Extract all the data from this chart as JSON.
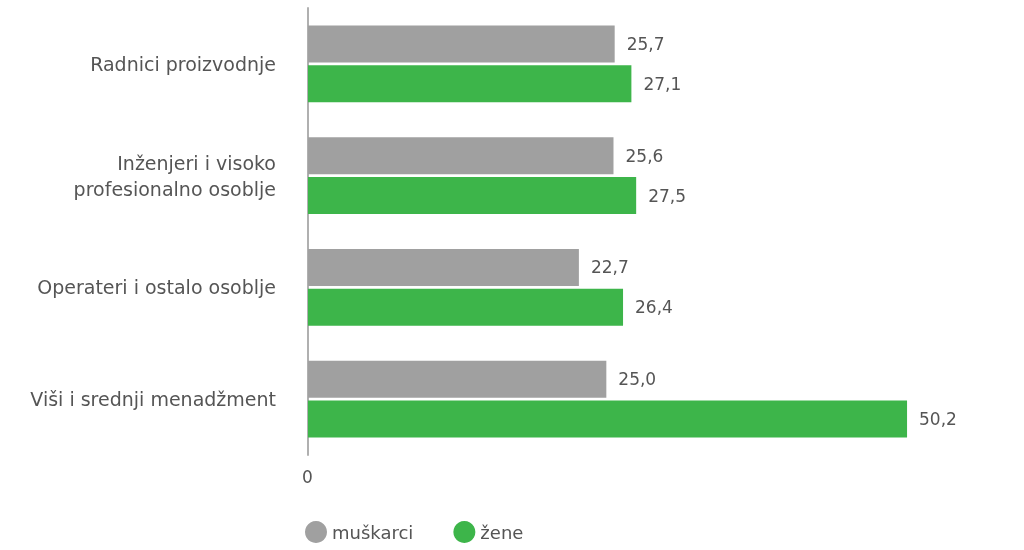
{
  "chart_data": {
    "type": "bar",
    "orientation": "horizontal",
    "categories": [
      "Radnici proizvodnje",
      "Inženjeri i visoko\nprofesionalno osoblje",
      "Operateri i ostalo osoblje",
      "Viši i srednji menadžment"
    ],
    "series": [
      {
        "name": "muškarci",
        "color": "#a0a0a0",
        "values": [
          25.7,
          25.6,
          22.7,
          25.0
        ],
        "value_labels": [
          "25,7",
          "25,6",
          "22,7",
          "25,0"
        ]
      },
      {
        "name": "žene",
        "color": "#3db54a",
        "values": [
          27.1,
          27.5,
          26.4,
          50.2
        ],
        "value_labels": [
          "27,1",
          "27,5",
          "26,4",
          "50,2"
        ]
      }
    ],
    "annotations": [
      "0"
    ],
    "legend": "bottom"
  }
}
